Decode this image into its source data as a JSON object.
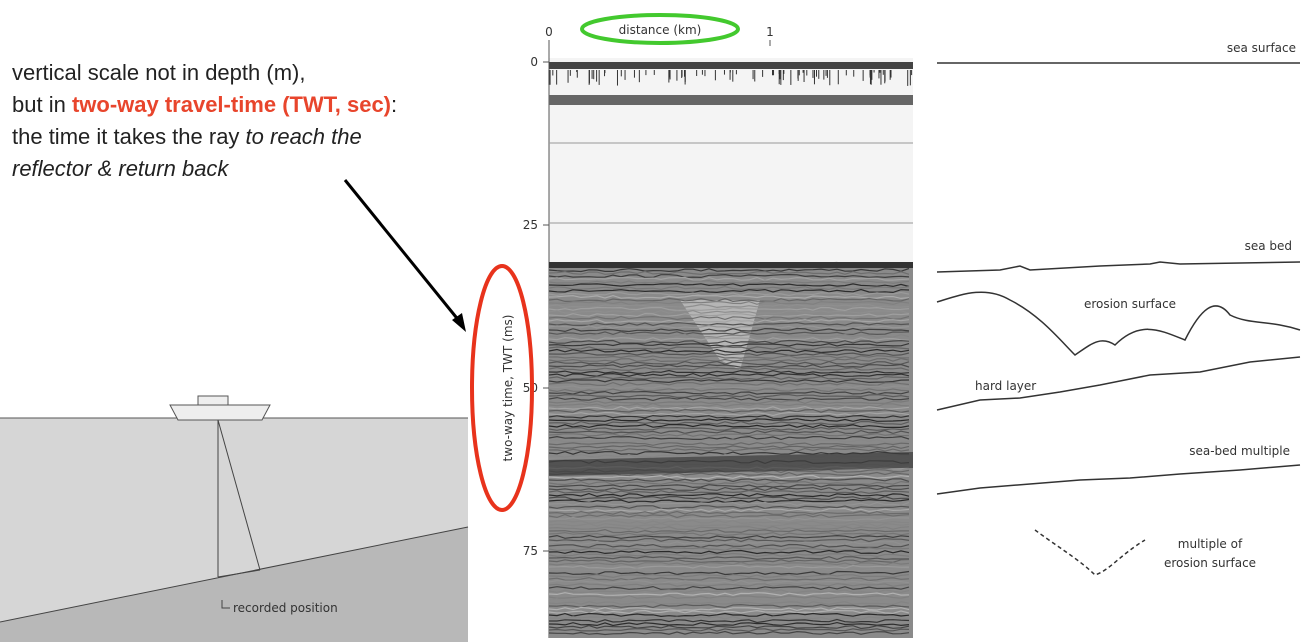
{
  "annotation": {
    "line1": "vertical scale not in depth (m),",
    "line2_prefix": "but in ",
    "line2_highlight": "two-way travel-time (TWT, sec)",
    "line2_suffix": ":",
    "line3_prefix": "the time it takes the ray ",
    "line3_italic": "to reach the",
    "line4_italic": "reflector & return back"
  },
  "seismic": {
    "x_axis_title": "distance (km)",
    "x_ticks": [
      0,
      1
    ],
    "y_axis_title": "two-way time, TWT (ms)",
    "y_ticks": [
      0,
      25,
      50,
      75
    ]
  },
  "interpretation": {
    "sea_surface": "sea surface",
    "sea_bed": "sea bed",
    "erosion_surface": "erosion surface",
    "hard_layer": "hard layer",
    "sea_bed_multiple": "sea-bed multiple",
    "multiple_of_erosion_surface": [
      "multiple of",
      "erosion surface"
    ]
  },
  "ship_diagram": {
    "label": "recorded position"
  }
}
